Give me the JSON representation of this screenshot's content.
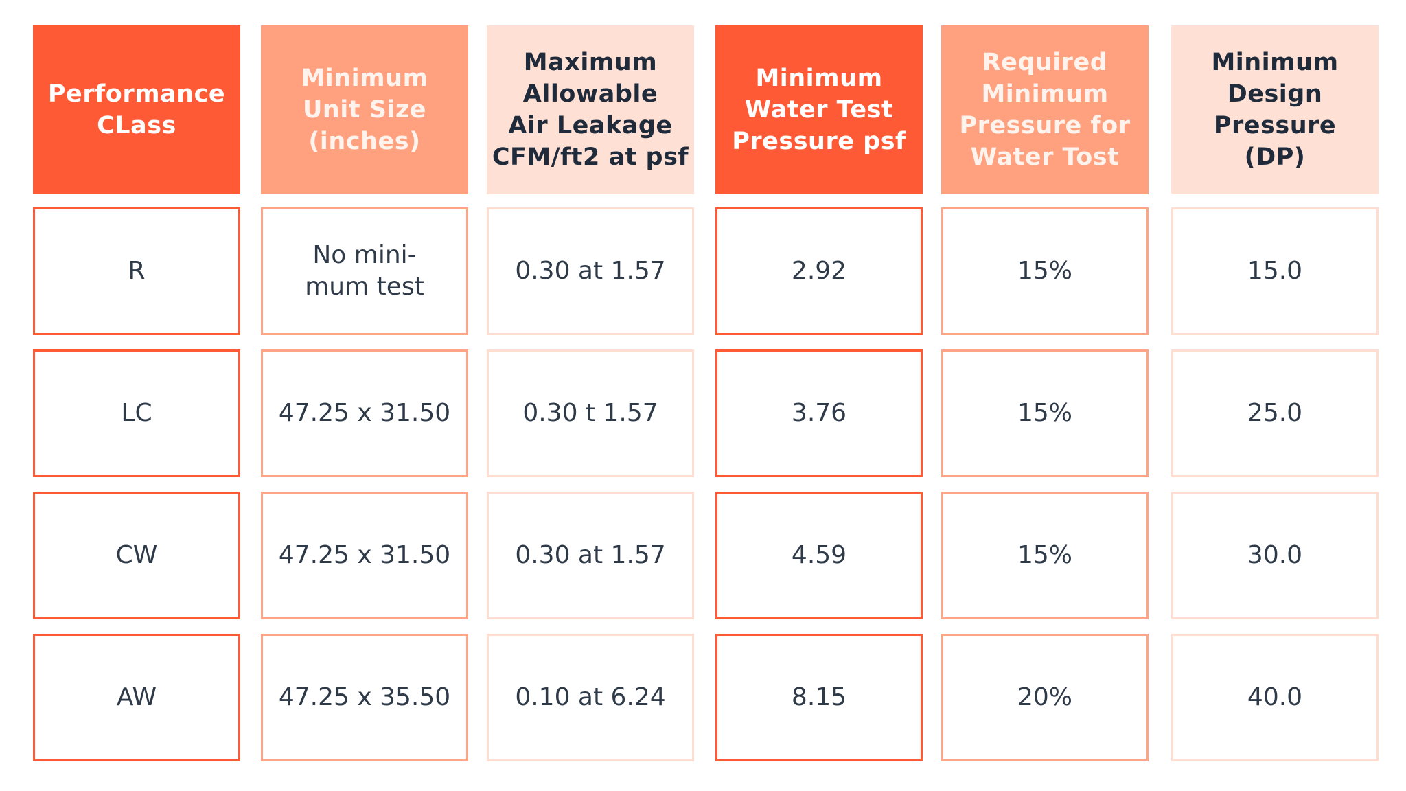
{
  "table": {
    "headers": [
      "Performance\nCLass",
      "Minimum\nUnit Size\n(inches)",
      "Maximum\nAllowable\nAir Leakage\nCFM/ft2 at psf",
      "Minimum\nWater Test\nPressure psf",
      "Required\nMinimum\nPressure for\nWater Tost",
      "Minimum\nDesign\nPressure\n(DP)"
    ],
    "rows": [
      [
        "R",
        "No mini-\nmum test",
        "0.30 at 1.57",
        "2.92",
        "15%",
        "15.0"
      ],
      [
        "LC",
        "47.25 x 31.50",
        "0.30 t 1.57",
        "3.76",
        "15%",
        "25.0"
      ],
      [
        "CW",
        "47.25 x 31.50",
        "0.30 at 1.57",
        "4.59",
        "15%",
        "30.0"
      ],
      [
        "AW",
        "47.25 x 35.50",
        "0.10 at 6.24",
        "8.15",
        "20%",
        "40.0"
      ]
    ]
  }
}
